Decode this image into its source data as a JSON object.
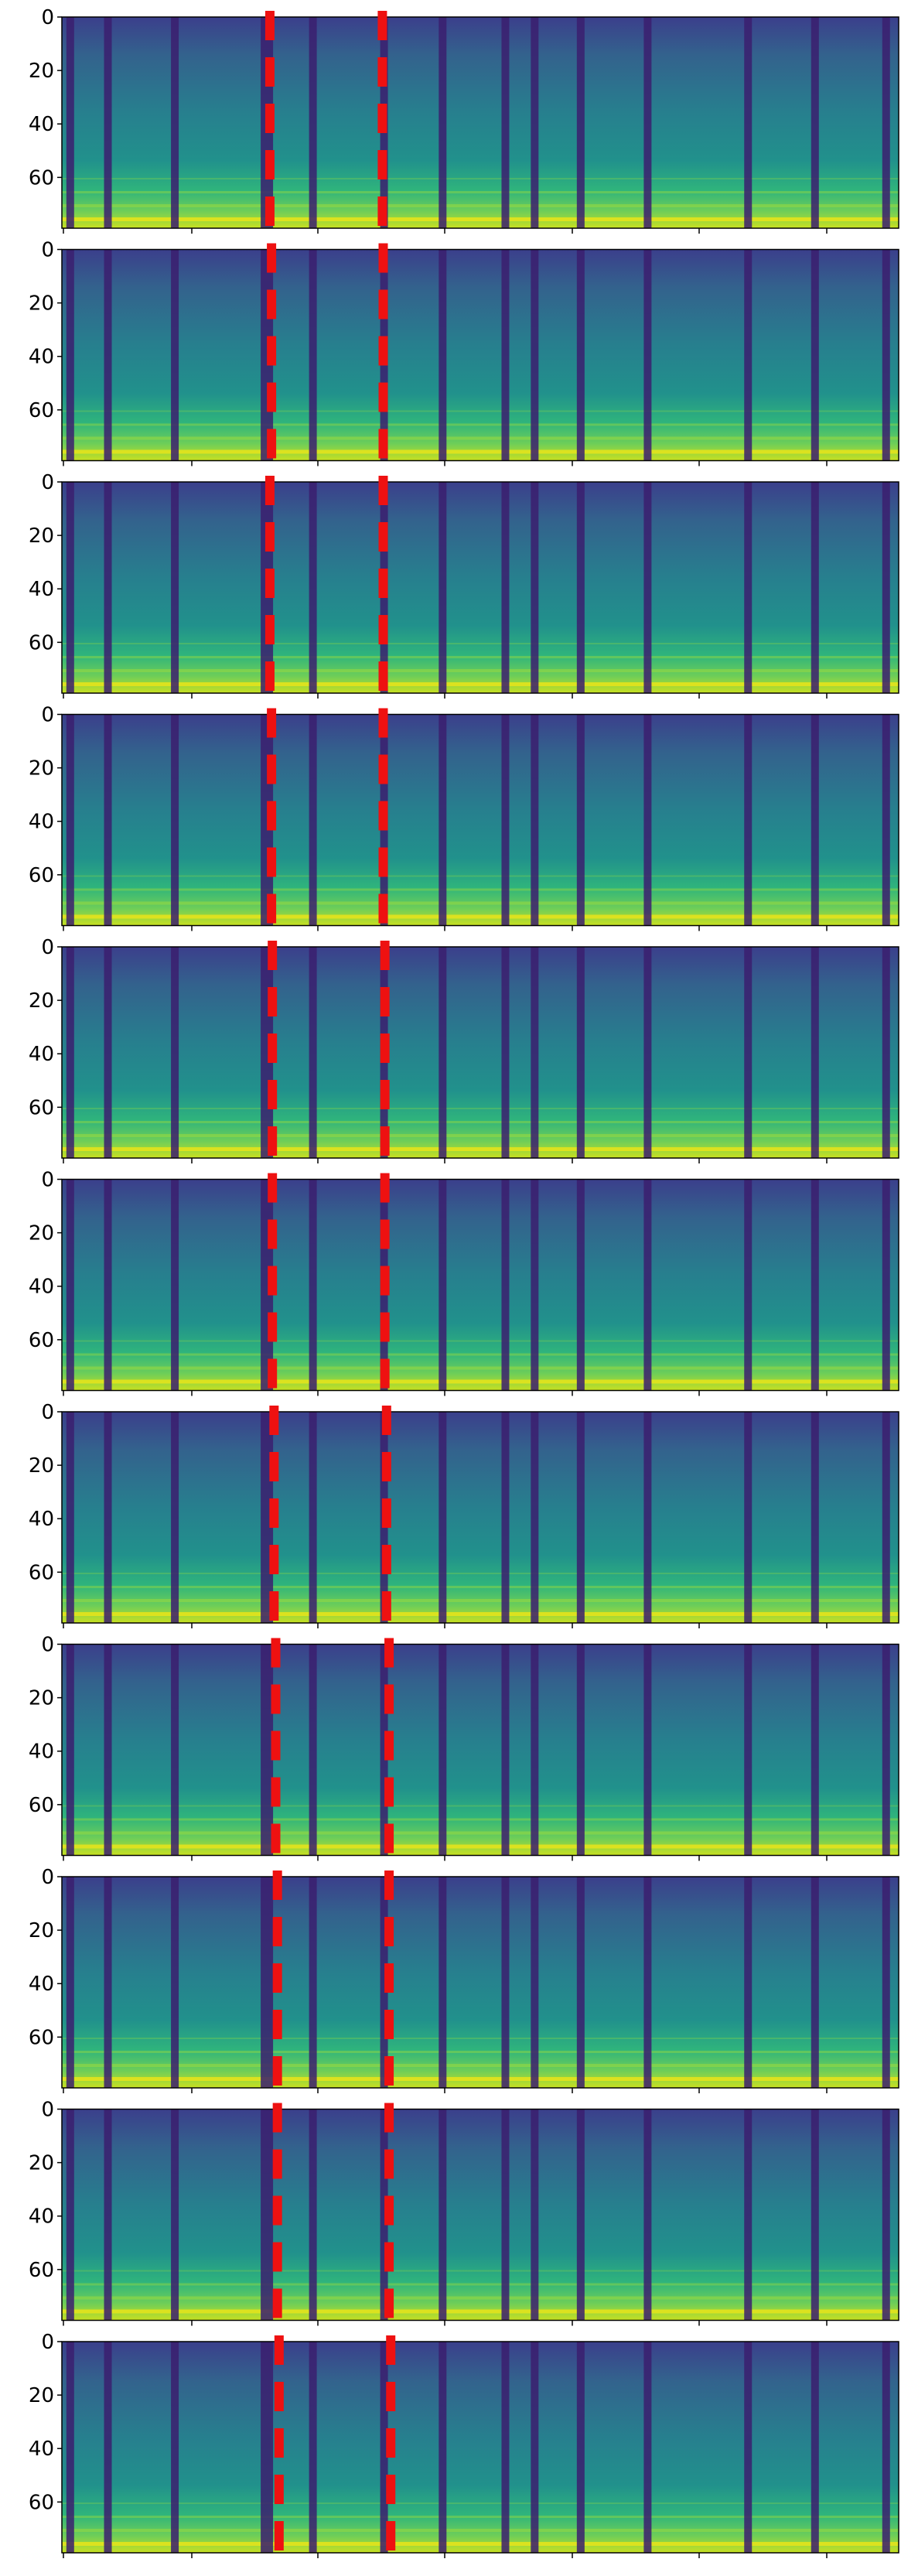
{
  "figure": {
    "panel_count": 11,
    "colormap": "viridis",
    "marker_color": "#ee1111",
    "marker_style": "dashed vertical lines"
  },
  "chart_data": [
    {
      "type": "heatmap",
      "panel": 1,
      "yticks": [
        0,
        20,
        40,
        60
      ],
      "ylim": [
        79,
        0
      ],
      "markers_x": [
        0.243,
        0.383
      ]
    },
    {
      "type": "heatmap",
      "panel": 2,
      "yticks": [
        0,
        20,
        40,
        60
      ],
      "ylim": [
        79,
        0
      ],
      "markers_x": [
        0.245,
        0.384
      ]
    },
    {
      "type": "heatmap",
      "panel": 3,
      "yticks": [
        0,
        20,
        40,
        60
      ],
      "ylim": [
        79,
        0
      ],
      "markers_x": [
        0.243,
        0.384
      ]
    },
    {
      "type": "heatmap",
      "panel": 4,
      "yticks": [
        0,
        20,
        40,
        60
      ],
      "ylim": [
        79,
        0
      ],
      "markers_x": [
        0.245,
        0.384
      ]
    },
    {
      "type": "heatmap",
      "panel": 5,
      "yticks": [
        0,
        20,
        40,
        60
      ],
      "ylim": [
        79,
        0
      ],
      "markers_x": [
        0.246,
        0.386
      ]
    },
    {
      "type": "heatmap",
      "panel": 6,
      "yticks": [
        0,
        20,
        40,
        60
      ],
      "ylim": [
        79,
        0
      ],
      "markers_x": [
        0.246,
        0.386
      ]
    },
    {
      "type": "heatmap",
      "panel": 7,
      "yticks": [
        0,
        20,
        40,
        60
      ],
      "ylim": [
        79,
        0
      ],
      "markers_x": [
        0.248,
        0.388
      ]
    },
    {
      "type": "heatmap",
      "panel": 8,
      "yticks": [
        0,
        20,
        40,
        60
      ],
      "ylim": [
        79,
        0
      ],
      "markers_x": [
        0.25,
        0.391
      ]
    },
    {
      "type": "heatmap",
      "panel": 9,
      "yticks": [
        0,
        20,
        40,
        60
      ],
      "ylim": [
        79,
        0
      ],
      "markers_x": [
        0.252,
        0.391
      ]
    },
    {
      "type": "heatmap",
      "panel": 10,
      "yticks": [
        0,
        20,
        40,
        60
      ],
      "ylim": [
        79,
        0
      ],
      "markers_x": [
        0.252,
        0.391
      ]
    },
    {
      "type": "heatmap",
      "panel": 11,
      "yticks": [
        0,
        20,
        40,
        60
      ],
      "ylim": [
        79,
        0
      ],
      "markers_x": [
        0.254,
        0.393
      ]
    }
  ]
}
